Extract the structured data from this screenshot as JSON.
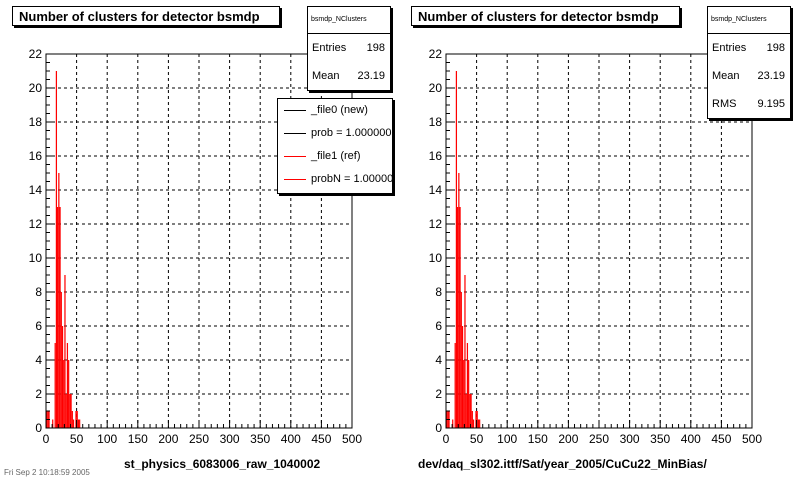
{
  "chart_data": [
    {
      "type": "bar",
      "title": "Number of clusters for detector bsmdp",
      "xlabel": "st_physics_6083006_raw_1040002",
      "ylabel": "",
      "xlim": [
        0,
        500
      ],
      "ylim": [
        0,
        22
      ],
      "x_ticks": [
        0,
        50,
        100,
        150,
        200,
        250,
        300,
        350,
        400,
        450,
        500
      ],
      "y_ticks": [
        0,
        2,
        4,
        6,
        8,
        10,
        12,
        14,
        16,
        18,
        20,
        22
      ],
      "grid": true,
      "stats": {
        "name": "bsmdp_NClusters",
        "entries": "198",
        "mean": "23.19"
      },
      "legend": [
        {
          "label": "_file0 (new)",
          "color": "#000000"
        },
        {
          "label": "prob = 1.000000",
          "color": "#000000"
        },
        {
          "label": "_file1 (ref)",
          "color": "#ff0000"
        },
        {
          "label": "probN = 1.000000",
          "color": "#ff0000"
        }
      ],
      "series": [
        {
          "color": "#ff0000",
          "bin_width": 2,
          "bins": [
            {
              "x": 0,
              "y": 1
            },
            {
              "x": 2,
              "y": 1
            },
            {
              "x": 4,
              "y": 1
            },
            {
              "x": 10,
              "y": 0.5
            },
            {
              "x": 14,
              "y": 5
            },
            {
              "x": 16,
              "y": 21
            },
            {
              "x": 18,
              "y": 13
            },
            {
              "x": 20,
              "y": 15
            },
            {
              "x": 22,
              "y": 13
            },
            {
              "x": 24,
              "y": 8
            },
            {
              "x": 26,
              "y": 6
            },
            {
              "x": 28,
              "y": 4
            },
            {
              "x": 30,
              "y": 9
            },
            {
              "x": 32,
              "y": 2
            },
            {
              "x": 34,
              "y": 5
            },
            {
              "x": 36,
              "y": 4
            },
            {
              "x": 38,
              "y": 2
            },
            {
              "x": 40,
              "y": 2
            },
            {
              "x": 42,
              "y": 1
            },
            {
              "x": 44,
              "y": 0.5
            },
            {
              "x": 48,
              "y": 1
            },
            {
              "x": 50,
              "y": 1
            },
            {
              "x": 52,
              "y": 0.5
            },
            {
              "x": 54,
              "y": 0.5
            }
          ]
        }
      ]
    },
    {
      "type": "bar",
      "title": "Number of clusters for detector bsmdp",
      "xlabel": "dev/daq_sl302.ittf/Sat/year_2005/CuCu22_MinBias/",
      "ylabel": "",
      "xlim": [
        0,
        500
      ],
      "ylim": [
        0,
        22
      ],
      "x_ticks": [
        0,
        50,
        100,
        150,
        200,
        250,
        300,
        350,
        400,
        450,
        500
      ],
      "y_ticks": [
        0,
        2,
        4,
        6,
        8,
        10,
        12,
        14,
        16,
        18,
        20,
        22
      ],
      "grid": true,
      "stats": {
        "name": "bsmdp_NClusters",
        "entries": "198",
        "mean": "23.19",
        "rms": "9.195"
      },
      "series": [
        {
          "color": "#ff0000",
          "bin_width": 2,
          "bins": [
            {
              "x": 0,
              "y": 1
            },
            {
              "x": 2,
              "y": 1
            },
            {
              "x": 4,
              "y": 1
            },
            {
              "x": 10,
              "y": 0.5
            },
            {
              "x": 14,
              "y": 5
            },
            {
              "x": 16,
              "y": 21
            },
            {
              "x": 18,
              "y": 13
            },
            {
              "x": 20,
              "y": 15
            },
            {
              "x": 22,
              "y": 13
            },
            {
              "x": 24,
              "y": 8
            },
            {
              "x": 26,
              "y": 6
            },
            {
              "x": 28,
              "y": 4
            },
            {
              "x": 30,
              "y": 9
            },
            {
              "x": 32,
              "y": 2
            },
            {
              "x": 34,
              "y": 5
            },
            {
              "x": 36,
              "y": 4
            },
            {
              "x": 38,
              "y": 2
            },
            {
              "x": 40,
              "y": 2
            },
            {
              "x": 42,
              "y": 1
            },
            {
              "x": 44,
              "y": 0.5
            },
            {
              "x": 48,
              "y": 1
            },
            {
              "x": 50,
              "y": 1
            },
            {
              "x": 52,
              "y": 0.5
            },
            {
              "x": 54,
              "y": 0.5
            }
          ]
        }
      ]
    }
  ],
  "labels": {
    "entries": "Entries",
    "mean": "Mean",
    "rms": "RMS"
  },
  "footer_stamp": "Fri Sep 2 10:18:59 2005"
}
